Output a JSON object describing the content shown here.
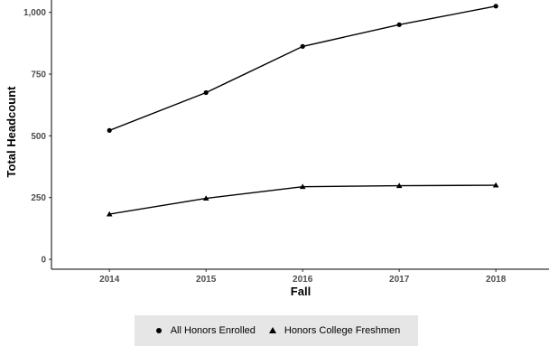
{
  "chart_data": {
    "type": "line",
    "xlabel": "Fall",
    "ylabel": "Total Headcount",
    "x": [
      2014,
      2015,
      2016,
      2017,
      2018
    ],
    "x_tick_labels": [
      "2014",
      "2015",
      "2016",
      "2017",
      "2018"
    ],
    "ylim": [
      -40,
      1050
    ],
    "y_ticks": [
      0,
      250,
      500,
      750,
      1000
    ],
    "y_tick_labels": [
      "0",
      "250",
      "500",
      "750",
      "1,000"
    ],
    "grid": false,
    "legend_position": "bottom",
    "series": [
      {
        "name": "All Honors Enrolled",
        "marker": "circle",
        "values": [
          522,
          675,
          862,
          950,
          1025
        ]
      },
      {
        "name": "Honors College Freshmen",
        "marker": "triangle",
        "values": [
          183,
          247,
          294,
          298,
          300
        ]
      }
    ],
    "colors": {
      "line": "#000000",
      "axis": "#000000",
      "tick_text": "#4d4d4d",
      "legend_bg": "#e6e6e6"
    }
  }
}
